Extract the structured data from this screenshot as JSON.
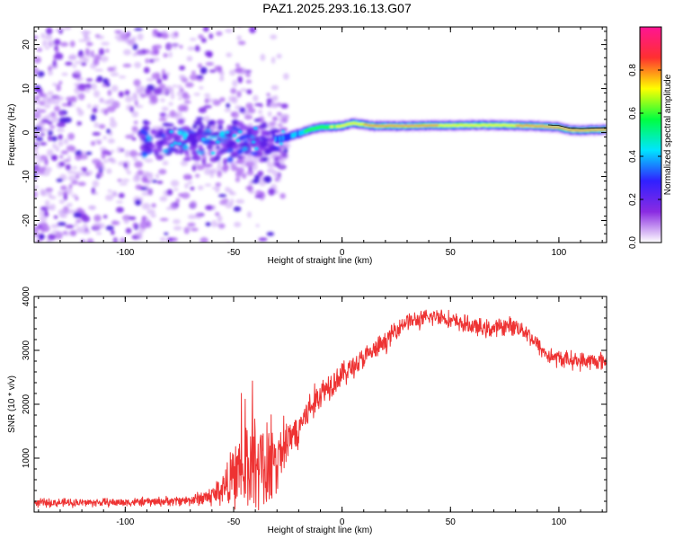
{
  "title": "PAZ1.2025.293.16.13.G07",
  "chart_data": [
    {
      "type": "heatmap",
      "name": "spectrogram",
      "xlabel": "Height of straight line (km)",
      "ylabel": "Frequency (Hz)",
      "xlim": [
        -142,
        122
      ],
      "ylim": [
        -25,
        24
      ],
      "xticks": [
        -100,
        -50,
        0,
        50,
        100
      ],
      "yticks": [
        -20,
        -10,
        0,
        10,
        20
      ],
      "ridge": {
        "x": [
          -30,
          -25,
          -20,
          -15,
          -10,
          -5,
          0,
          5,
          10,
          15,
          20,
          30,
          40,
          50,
          60,
          70,
          80,
          90,
          100,
          105,
          110,
          122
        ],
        "y": [
          -1.5,
          -1.0,
          -0.2,
          0.6,
          1.2,
          1.3,
          1.5,
          2.2,
          1.8,
          1.5,
          1.5,
          1.5,
          1.6,
          1.6,
          1.7,
          1.7,
          1.6,
          1.5,
          1.2,
          0.6,
          0.5,
          0.7
        ]
      },
      "colorbar": {
        "label": "Normalized spectral amplitude",
        "ticks": [
          0.0,
          0.2,
          0.4,
          0.6,
          0.8
        ],
        "tick_labels": [
          "0.0",
          "0.2",
          "0.4",
          "0.6",
          "0.8"
        ],
        "range": [
          0,
          1
        ],
        "colors": [
          "#ffffff",
          "#8a2be2",
          "#3020ff",
          "#00e5ff",
          "#00ff40",
          "#ffff00",
          "#ff3030",
          "#ff1493"
        ]
      }
    },
    {
      "type": "line",
      "name": "snr",
      "xlabel": "Height of straight line (km)",
      "ylabel": "SNR (10 * v/v)",
      "xlim": [
        -142,
        122
      ],
      "ylim": [
        0,
        4000
      ],
      "xticks": [
        -100,
        -50,
        0,
        50,
        100
      ],
      "yticks": [
        1000,
        2000,
        3000,
        4000
      ],
      "color": "#ee3333",
      "envelope": {
        "x": [
          -142,
          -120,
          -100,
          -80,
          -70,
          -60,
          -55,
          -50,
          -45,
          -42,
          -38,
          -35,
          -30,
          -25,
          -20,
          -15,
          -10,
          -5,
          0,
          5,
          10,
          15,
          20,
          25,
          30,
          35,
          40,
          45,
          50,
          55,
          60,
          65,
          70,
          75,
          80,
          85,
          90,
          95,
          100,
          110,
          122
        ],
        "mean": [
          170,
          175,
          180,
          200,
          220,
          300,
          450,
          650,
          850,
          950,
          900,
          800,
          1000,
          1300,
          1600,
          1900,
          2200,
          2400,
          2550,
          2700,
          2850,
          3000,
          3150,
          3400,
          3550,
          3550,
          3600,
          3650,
          3550,
          3500,
          3450,
          3400,
          3400,
          3450,
          3450,
          3350,
          3100,
          2900,
          2850,
          2800,
          2800
        ],
        "noise": [
          80,
          80,
          80,
          90,
          100,
          200,
          350,
          550,
          800,
          800,
          750,
          600,
          450,
          400,
          380,
          350,
          300,
          280,
          250,
          230,
          220,
          200,
          200,
          180,
          170,
          170,
          170,
          170,
          170,
          170,
          170,
          170,
          170,
          170,
          170,
          170,
          170,
          170,
          170,
          170,
          170
        ]
      }
    }
  ]
}
